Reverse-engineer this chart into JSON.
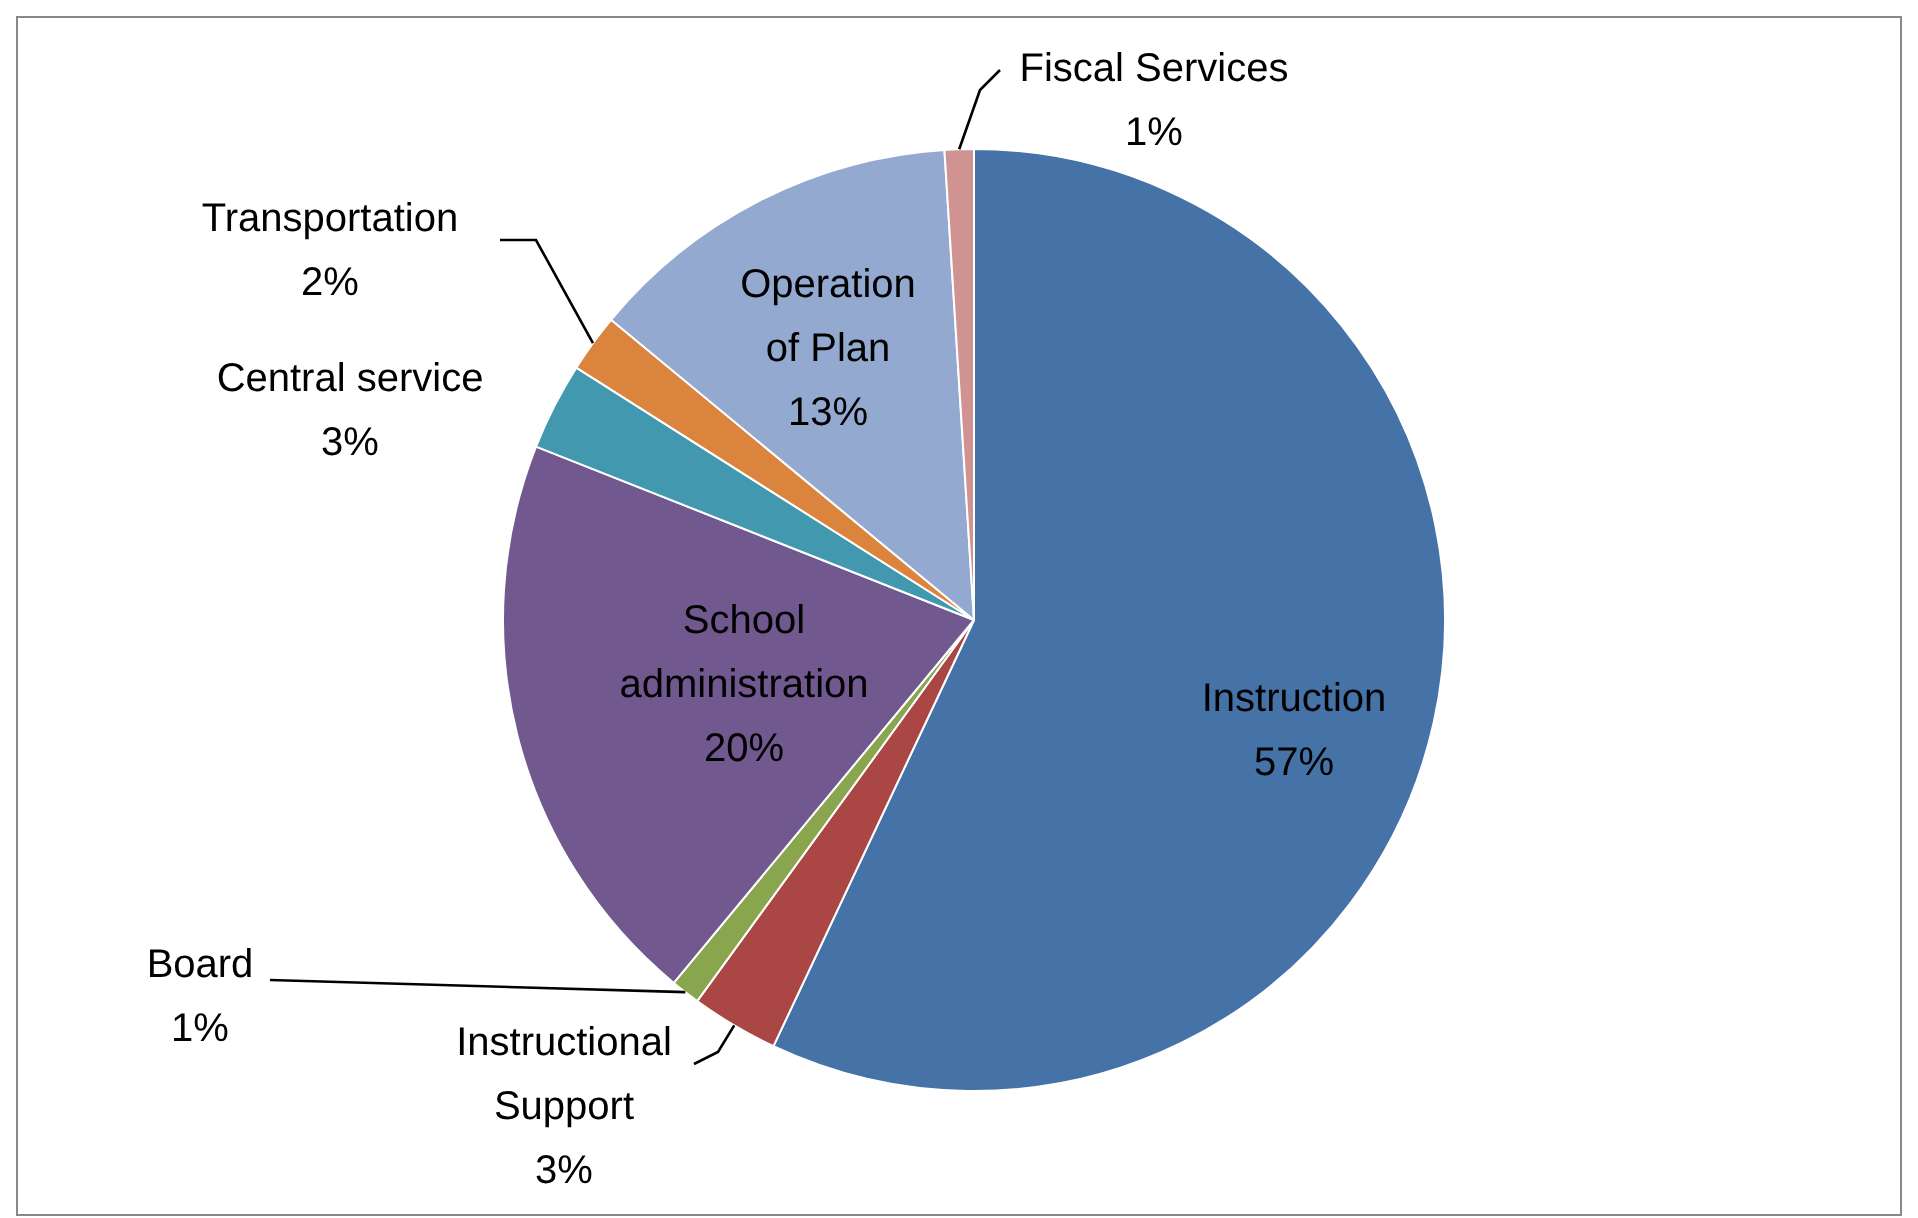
{
  "chart_data": {
    "type": "pie",
    "categories": [
      "Instruction",
      "Instructional Support",
      "Board",
      "School administration",
      "Central service",
      "Transportation",
      "Operation of Plan",
      "Fiscal Services"
    ],
    "values": [
      57,
      3,
      1,
      20,
      3,
      2,
      13,
      1
    ],
    "value_labels": [
      "57%",
      "3%",
      "1%",
      "20%",
      "3%",
      "2%",
      "13%",
      "1%"
    ],
    "colors": [
      "#4572a7",
      "#aa4643",
      "#89a54e",
      "#71588f",
      "#4198af",
      "#db843d",
      "#93a9cf",
      "#d19392"
    ],
    "legend": false
  }
}
